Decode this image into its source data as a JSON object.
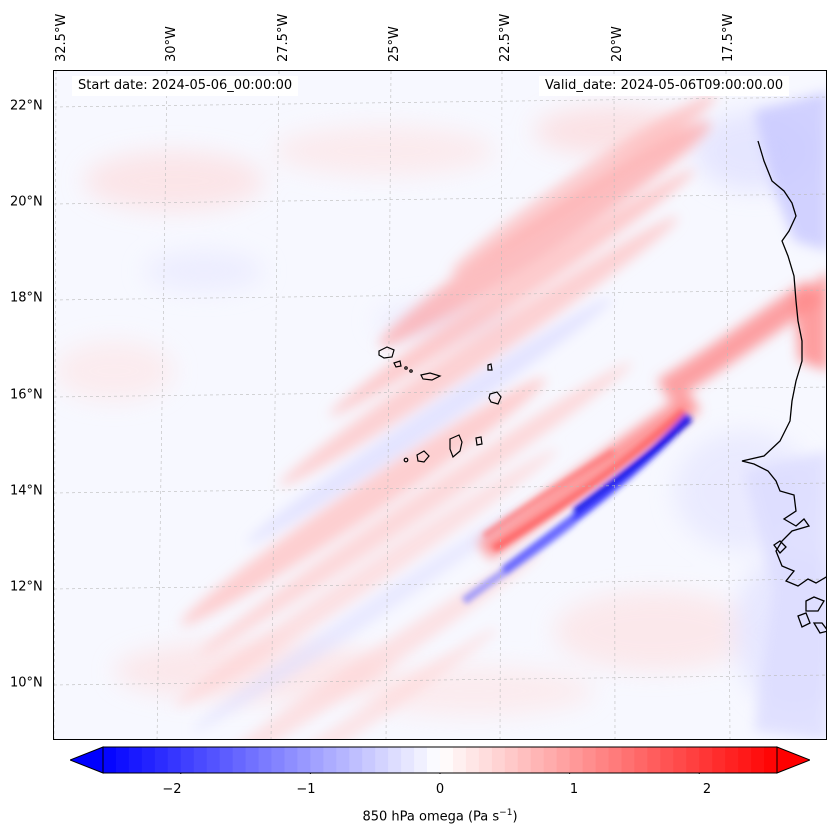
{
  "map": {
    "start_label": "Start date: 2024-05-06_00:00:00",
    "valid_label": "Valid_date: 2024-05-06T09:00:00.00",
    "longitude_labels": [
      "32.5°W",
      "30°W",
      "27.5°W",
      "25°W",
      "22.5°W",
      "20°W",
      "17.5°W"
    ],
    "latitude_labels": [
      "22°N",
      "20°N",
      "18°N",
      "16°N",
      "14°N",
      "12°N",
      "10°N"
    ],
    "positive_color": "#ff0000",
    "negative_color": "#0000ff"
  },
  "colorbar": {
    "label_prefix": "850 hPa omega (Pa s",
    "label_exponent": "−1",
    "label_suffix": ")",
    "ticks": [
      "−2",
      "−1",
      "0",
      "1",
      "2"
    ],
    "tick_values": [
      -2,
      -1,
      0,
      1,
      2
    ],
    "range": [
      -2.6,
      2.6
    ],
    "extend": "both"
  }
}
